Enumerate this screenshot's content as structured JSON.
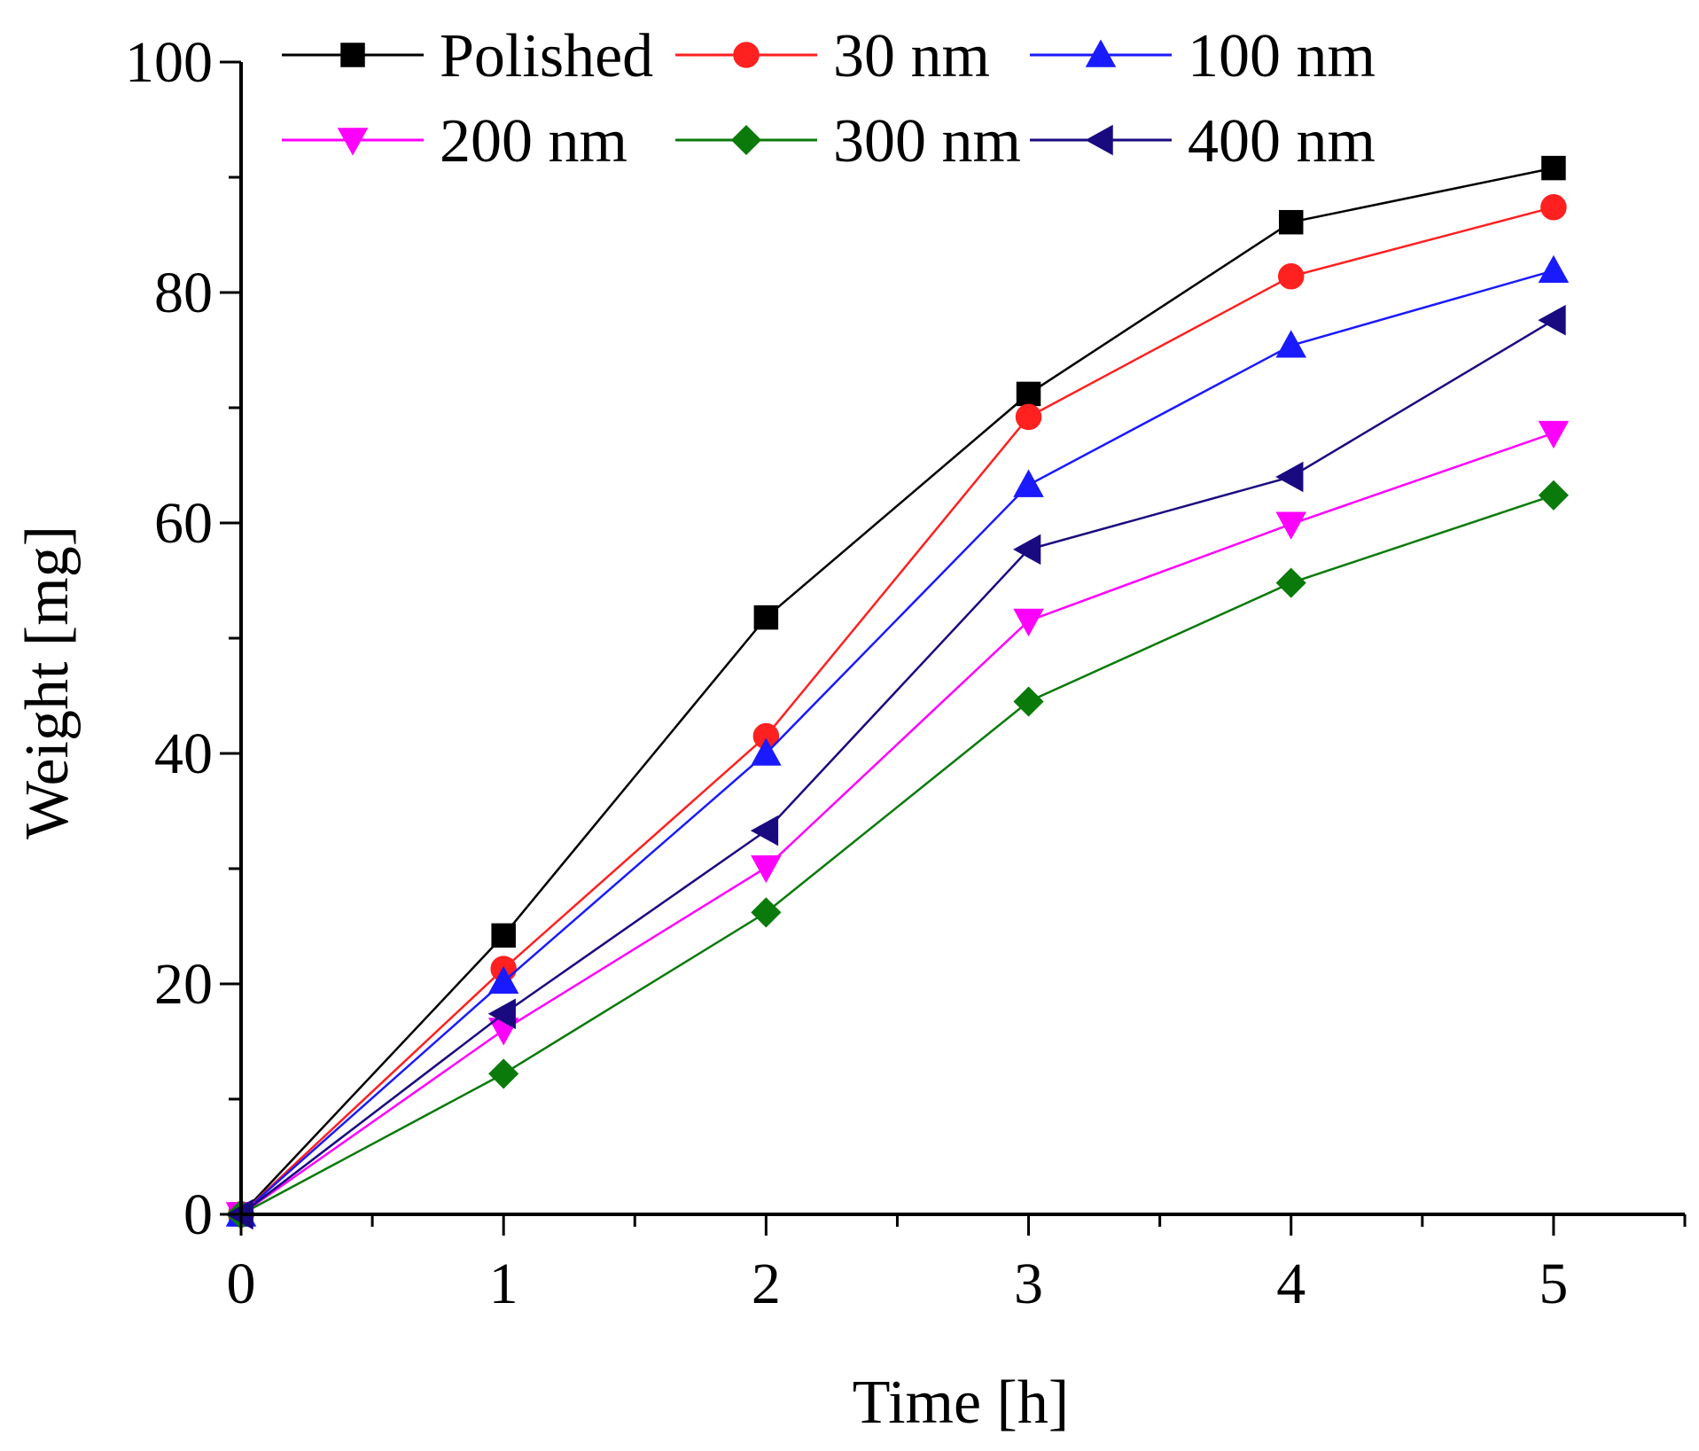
{
  "chart_data": {
    "type": "line",
    "title": "",
    "xlabel": "Time [h]",
    "ylabel": "Weight [mg]",
    "xlim": [
      0,
      5.5
    ],
    "ylim": [
      0,
      100
    ],
    "x_ticks": [
      0,
      1,
      2,
      3,
      4,
      5
    ],
    "y_ticks": [
      0,
      20,
      40,
      60,
      80,
      100
    ],
    "grid": false,
    "legend_position": "top",
    "x": [
      0,
      1,
      2,
      3,
      4,
      5
    ],
    "series": [
      {
        "name": "Polished",
        "color": "#000000",
        "marker": "square",
        "values": [
          0,
          24.2,
          51.8,
          71.2,
          86.1,
          90.8
        ]
      },
      {
        "name": "30 nm",
        "color": "#ff2020",
        "marker": "circle",
        "values": [
          0,
          21.3,
          41.5,
          69.2,
          81.4,
          87.4
        ]
      },
      {
        "name": "100 nm",
        "color": "#1a1aff",
        "marker": "triangle-up",
        "values": [
          0,
          20.2,
          40.0,
          63.3,
          75.4,
          81.9
        ]
      },
      {
        "name": "200 nm",
        "color": "#ff00ff",
        "marker": "triangle-down",
        "values": [
          0,
          16.0,
          30.1,
          51.5,
          59.9,
          67.8
        ]
      },
      {
        "name": "300 nm",
        "color": "#0a7a0a",
        "marker": "diamond",
        "values": [
          0,
          12.2,
          26.2,
          44.5,
          54.8,
          62.4
        ]
      },
      {
        "name": "400 nm",
        "color": "#1a0a80",
        "marker": "triangle-left",
        "values": [
          0,
          17.4,
          33.3,
          57.7,
          64.0,
          77.6
        ]
      }
    ]
  }
}
